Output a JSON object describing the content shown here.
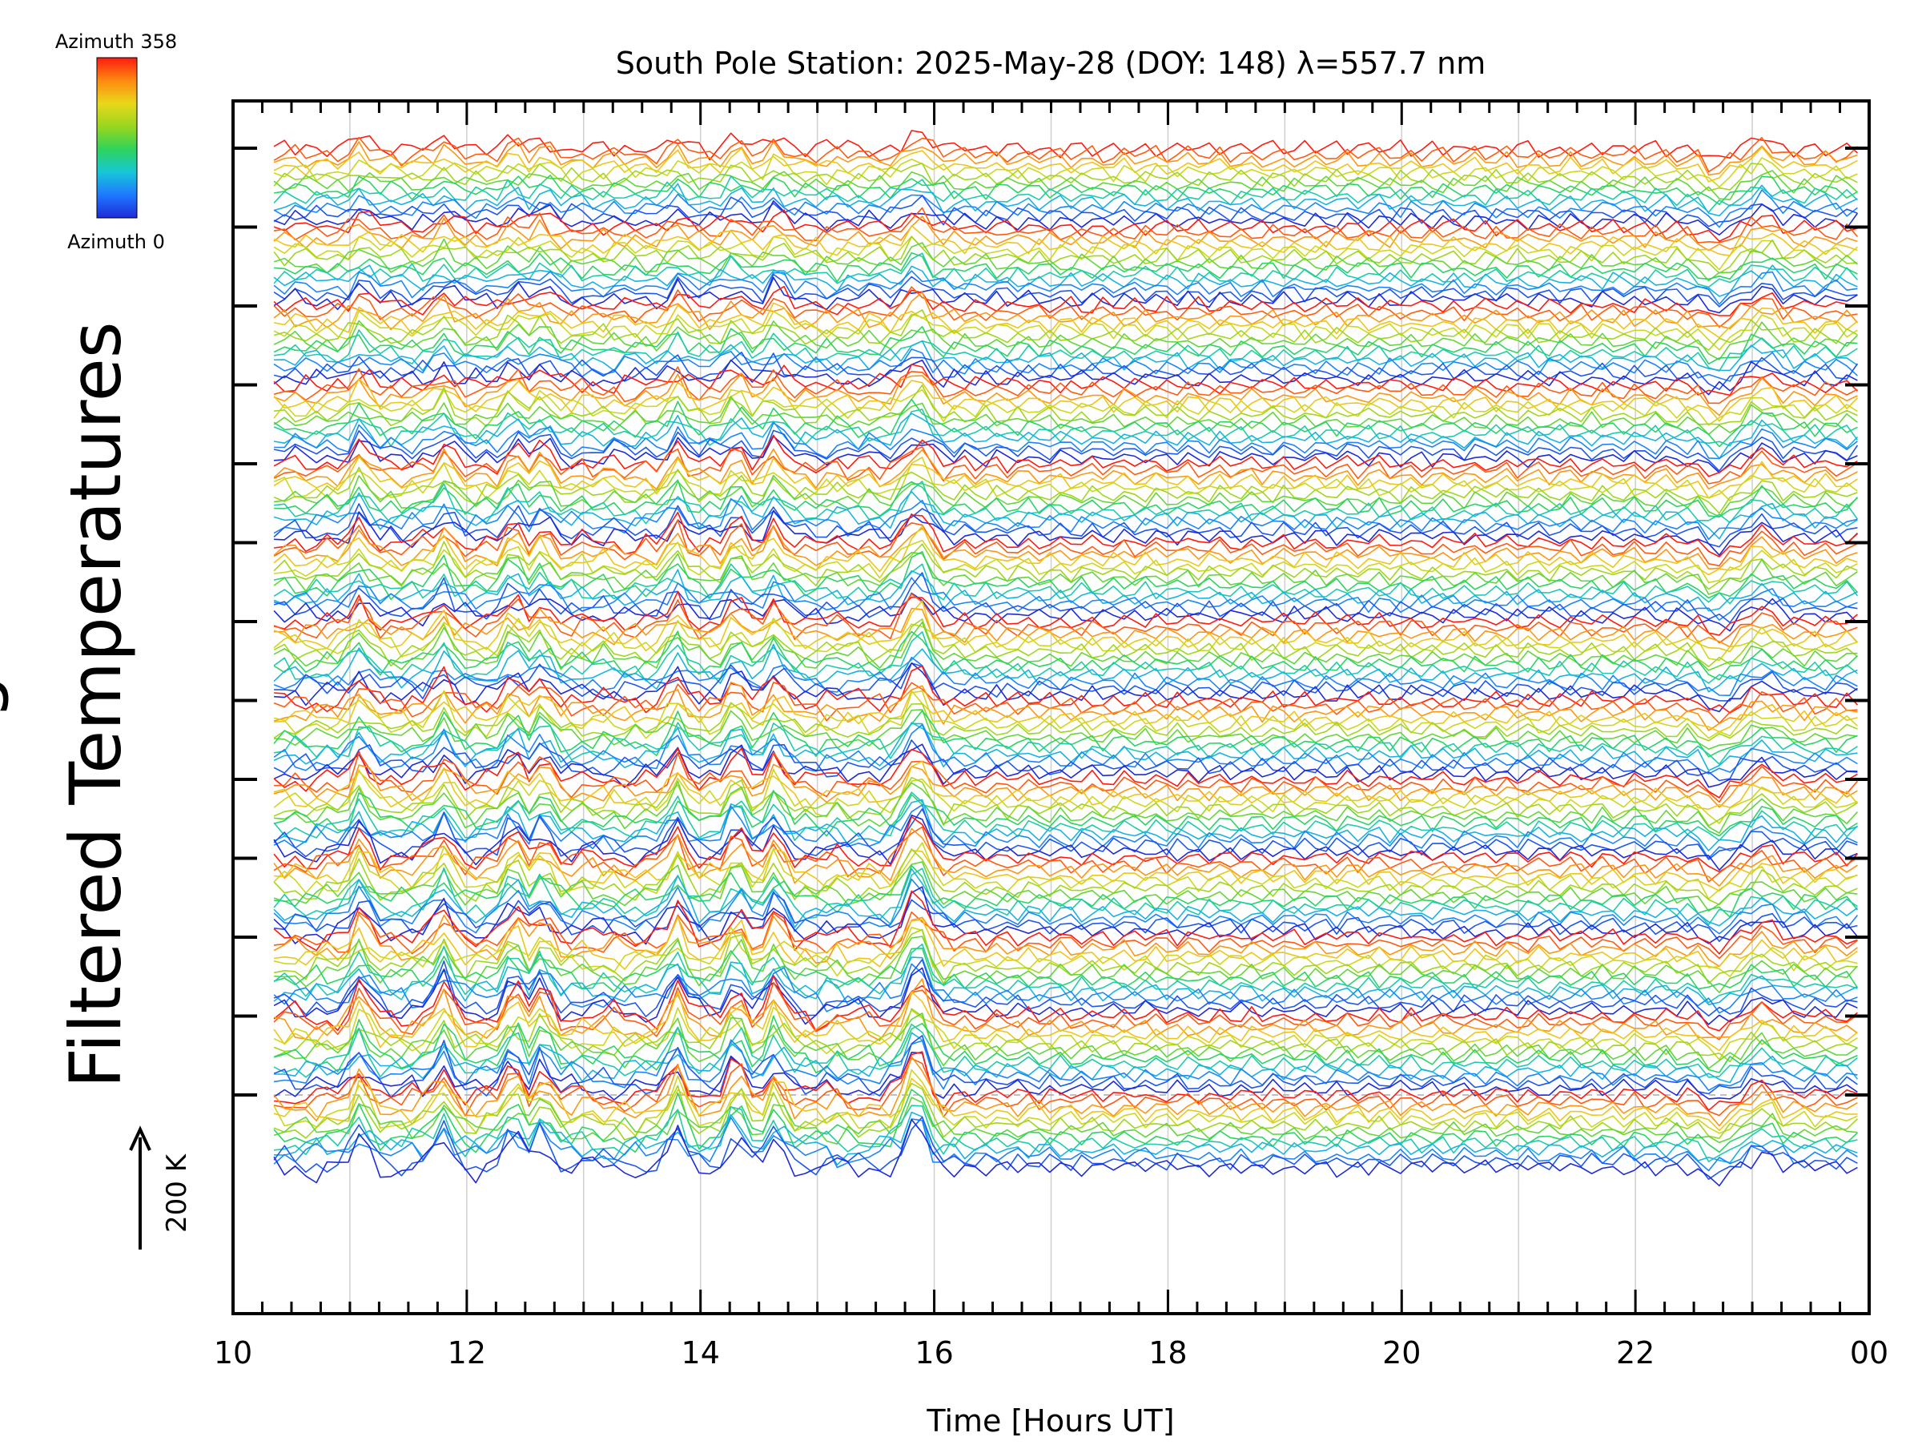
{
  "chart_data": {
    "type": "line",
    "title": "South Pole Station: 2025-May-28 (DOY: 148) λ=557.7 nm",
    "xlabel": "Time [Hours UT]",
    "ylabel": "Filtered Temperatures",
    "ylabel_clipped_fragment": "g",
    "x_tick_labels": [
      "10",
      "12",
      "14",
      "16",
      "18",
      "20",
      "22",
      "00"
    ],
    "x_tick_hours": [
      10,
      12,
      14,
      16,
      18,
      20,
      22,
      24
    ],
    "xlim": [
      10,
      24
    ],
    "data_x_range": [
      10.35,
      23.9
    ],
    "scale_bar": {
      "label": "200 K",
      "kelvin": 200
    },
    "colorbar": {
      "top_label": "Azimuth 358",
      "bottom_label": "Azimuth 0",
      "min": 0,
      "max": 358,
      "colors": [
        "#1e2bd8",
        "#1f78ff",
        "#17c7d8",
        "#2ed45a",
        "#9ad61e",
        "#e8d81a",
        "#ff8a10",
        "#ff1a10"
      ]
    },
    "grid": true,
    "series_groups": 13,
    "azimuths_per_group": 13,
    "activity_peaks_hours": [
      11.1,
      11.8,
      12.4,
      12.65,
      13.8,
      14.3,
      14.65,
      15.85
    ]
  }
}
